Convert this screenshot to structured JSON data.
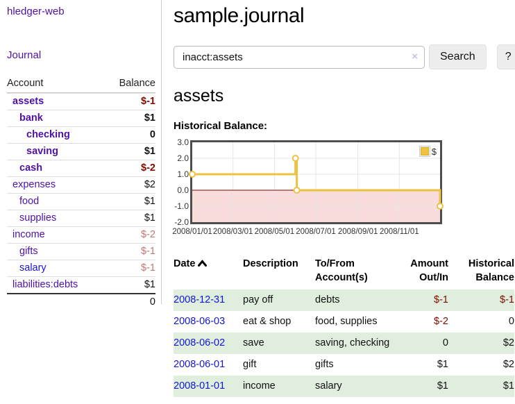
{
  "app": {
    "title": "hledger-web"
  },
  "sidebar": {
    "nav": {
      "journal_label": "Journal"
    },
    "table": {
      "account_header": "Account",
      "balance_header": "Balance",
      "accounts": [
        {
          "name": "assets",
          "balance": "$-1"
        },
        {
          "name": "bank",
          "balance": "$1"
        },
        {
          "name": "checking",
          "balance": "0"
        },
        {
          "name": "saving",
          "balance": "$1"
        },
        {
          "name": "cash",
          "balance": "$-2"
        },
        {
          "name": "expenses",
          "balance": "$2"
        },
        {
          "name": "food",
          "balance": "$1"
        },
        {
          "name": "supplies",
          "balance": "$1"
        },
        {
          "name": "income",
          "balance": "$-2"
        },
        {
          "name": "gifts",
          "balance": "$-1"
        },
        {
          "name": "salary",
          "balance": "$-1"
        },
        {
          "name": "liabilities:debts",
          "balance": "$1"
        }
      ],
      "total": "0"
    }
  },
  "main": {
    "title": "sample.journal",
    "search": {
      "value": "inacct:assets",
      "clear_icon": "×",
      "button_label": "Search",
      "help_label": "?"
    },
    "account_heading": "assets",
    "chart_label": "Historical Balance:"
  },
  "chart_data": {
    "type": "line",
    "step": true,
    "title": "Historical Balance",
    "series": [
      {
        "name": "$",
        "color": "#edc240",
        "points": [
          [
            "2008-01-01",
            1
          ],
          [
            "2008-06-01",
            2
          ],
          [
            "2008-06-03",
            0
          ],
          [
            "2008-12-31",
            -1
          ]
        ]
      }
    ],
    "x_ticks": [
      "2008/01/01",
      "2008/03/01",
      "2008/05/01",
      "2008/07/01",
      "2008/09/01",
      "2008/11/01"
    ],
    "y_ticks": [
      3.0,
      2.0,
      1.0,
      0.0,
      -1.0,
      -2.0
    ],
    "xlim": [
      "2008-01-01",
      "2008-12-31"
    ],
    "ylim": [
      -2,
      3
    ],
    "grid": true,
    "legend_position": "top-right",
    "negative_region_color": "#f9dcdc",
    "zero_line_color": "#8b0000",
    "gridline_color": "#e6e6e6",
    "marker_fill": "#ffffff"
  },
  "register": {
    "headers": {
      "date": "Date",
      "description": "Description",
      "tofrom": "To/From Account(s)",
      "amount": "Amount Out/In",
      "balance": "Historical Balance"
    },
    "rows": [
      {
        "date": "2008-12-31",
        "description": "pay off",
        "accounts": "debts",
        "amount": "$-1",
        "balance": "$-1"
      },
      {
        "date": "2008-06-03",
        "description": "eat & shop",
        "accounts": "food, supplies",
        "amount": "$-2",
        "balance": "0"
      },
      {
        "date": "2008-06-02",
        "description": "save",
        "accounts": "saving, checking",
        "amount": "0",
        "balance": "$2"
      },
      {
        "date": "2008-06-01",
        "description": "gift",
        "accounts": "gifts",
        "amount": "$1",
        "balance": "$2"
      },
      {
        "date": "2008-01-01",
        "description": "income",
        "accounts": "salary",
        "amount": "$1",
        "balance": "$1"
      }
    ]
  },
  "colors": {
    "link_purple": "#4e11a8",
    "link_blue": "#1414d6",
    "negative_strong": "#7f0c00",
    "negative_muted": "#bd7878",
    "row_green": "#dfeedd",
    "series_gold": "#edc240"
  }
}
